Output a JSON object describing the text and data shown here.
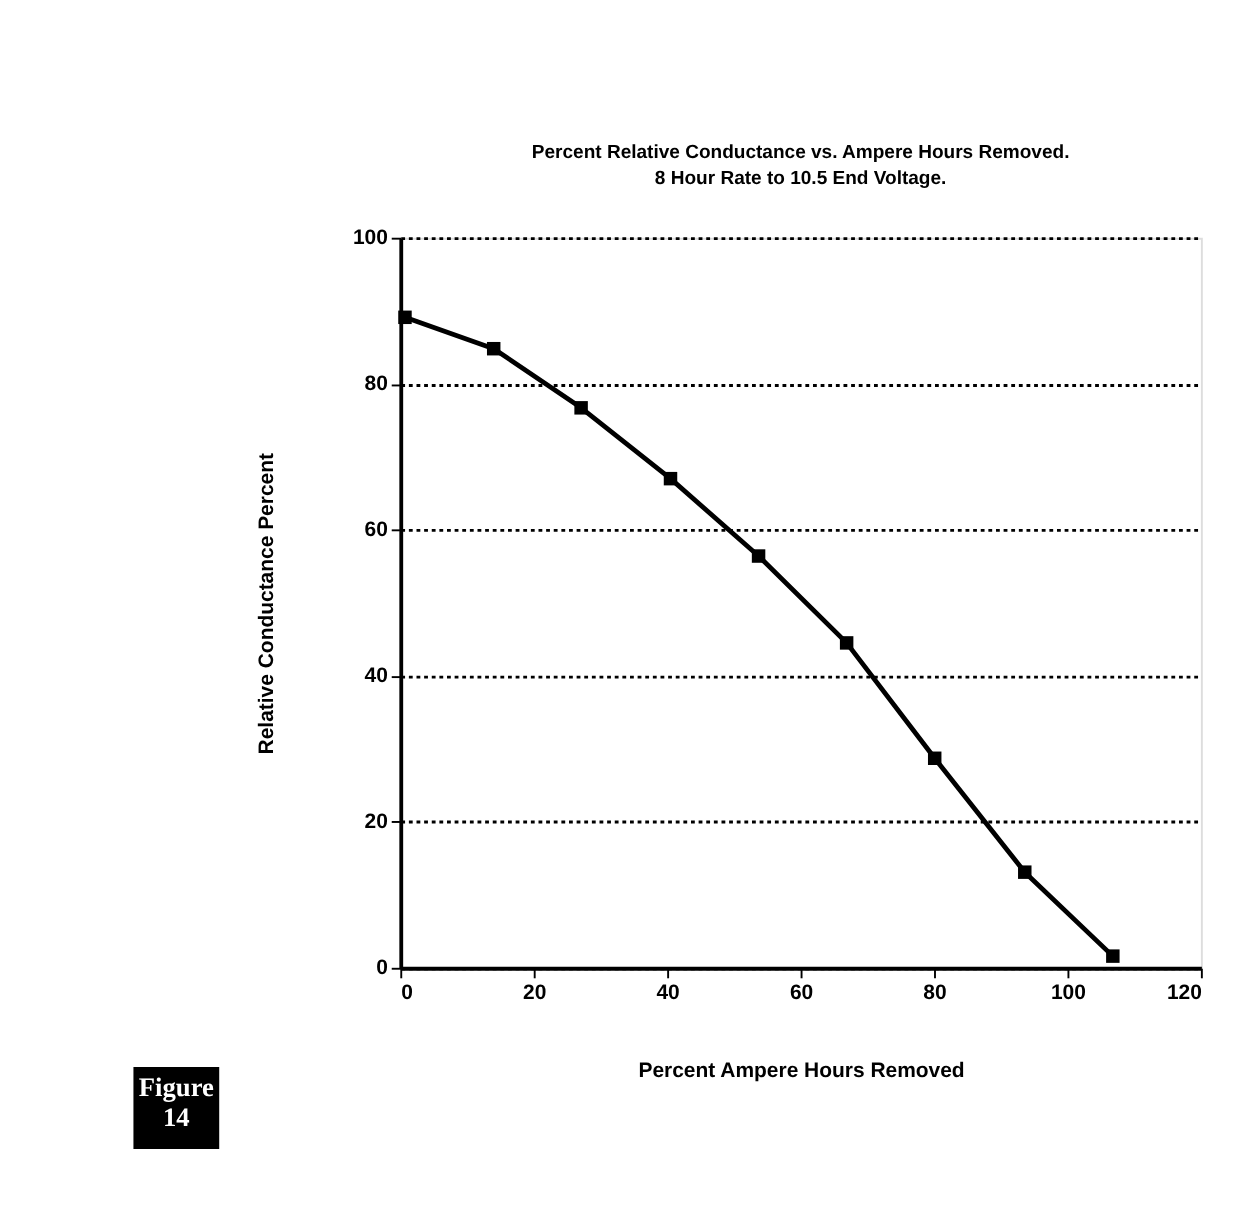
{
  "chart_data": {
    "type": "line",
    "title": "Percent Relative Conductance vs. Ampere Hours Removed.",
    "subtitle": "8 Hour Rate to 10.5 End Voltage.",
    "xlabel": "Percent Ampere Hours Removed",
    "ylabel": "Relative Conductance Percent",
    "x": [
      0.7,
      14.0,
      27.1,
      40.5,
      53.7,
      66.9,
      80.1,
      93.6,
      106.8
    ],
    "series": [
      {
        "color": "#000000",
        "values": [
          89.1,
          84.8,
          76.7,
          67.0,
          56.4,
          44.5,
          28.7,
          13.1,
          1.6
        ]
      }
    ],
    "xlim": [
      0,
      120
    ],
    "xticks": [
      0,
      20,
      40,
      60,
      80,
      100,
      120
    ],
    "ylim": [
      0,
      100
    ],
    "yticks": [
      0,
      20,
      40,
      60,
      80,
      100
    ],
    "grid": "y",
    "marker": "square",
    "line_style": "solid",
    "annotations": [
      "Figure 14"
    ]
  }
}
